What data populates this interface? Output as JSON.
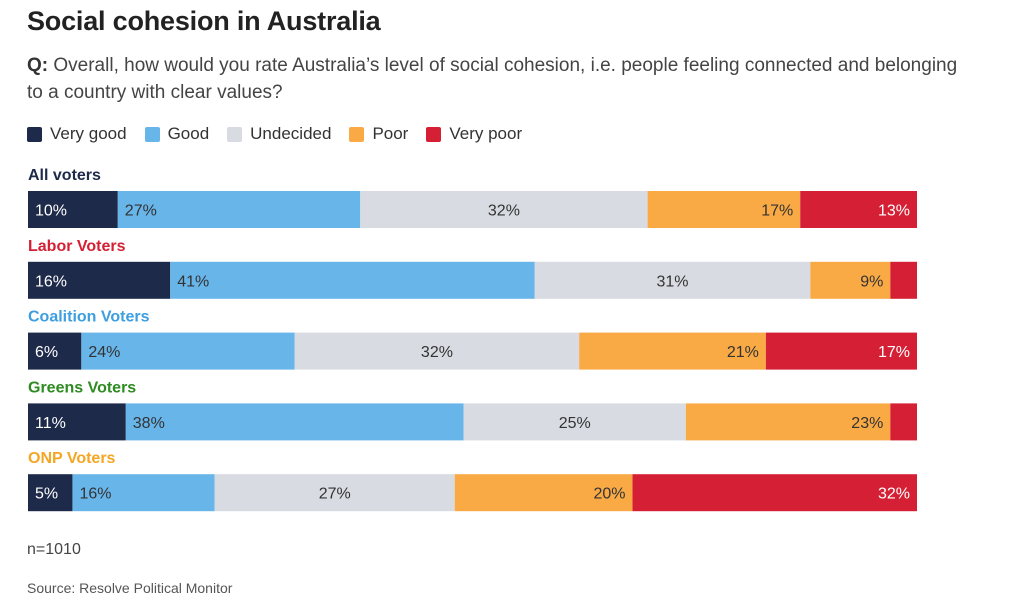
{
  "title": "Social cohesion in Australia",
  "question": {
    "prefix": "Q:",
    "text": " Overall, how would you rate Australia’s level of social cohesion, i.e. people feeling connected and belonging to a country with clear values?"
  },
  "footer": {
    "sample": "n=1010",
    "source": "Source: Resolve Political Monitor"
  },
  "chart_data": {
    "type": "bar",
    "orientation": "horizontal-stacked",
    "legend_position": "top-left",
    "grid": false,
    "series": [
      {
        "name": "Very good",
        "color": "#1e2a4a"
      },
      {
        "name": "Good",
        "color": "#68b5ea"
      },
      {
        "name": "Undecided",
        "color": "#d8dbe1"
      },
      {
        "name": "Poor",
        "color": "#f9aa45"
      },
      {
        "name": "Very poor",
        "color": "#d51f34"
      }
    ],
    "groups": [
      {
        "label": "All voters",
        "label_color": "#1e2a4a",
        "values": [
          10,
          27,
          32,
          17,
          13
        ],
        "labels": [
          "10%",
          "27%",
          "32%",
          "17%",
          "13%"
        ]
      },
      {
        "label": "Labor Voters",
        "label_color": "#d51f34",
        "values": [
          16,
          41,
          31,
          9,
          3
        ],
        "labels": [
          "16%",
          "41%",
          "31%",
          "9%",
          ""
        ]
      },
      {
        "label": "Coalition Voters",
        "label_color": "#3d9ee0",
        "values": [
          6,
          24,
          32,
          21,
          17
        ],
        "labels": [
          "6%",
          "24%",
          "32%",
          "21%",
          "17%"
        ]
      },
      {
        "label": "Greens Voters",
        "label_color": "#2e8b22",
        "values": [
          11,
          38,
          25,
          23,
          3
        ],
        "labels": [
          "11%",
          "38%",
          "25%",
          "23%",
          ""
        ]
      },
      {
        "label": "ONP Voters",
        "label_color": "#f5a623",
        "values": [
          5,
          16,
          27,
          20,
          32
        ],
        "labels": [
          "5%",
          "16%",
          "27%",
          "20%",
          "32%"
        ]
      }
    ]
  }
}
